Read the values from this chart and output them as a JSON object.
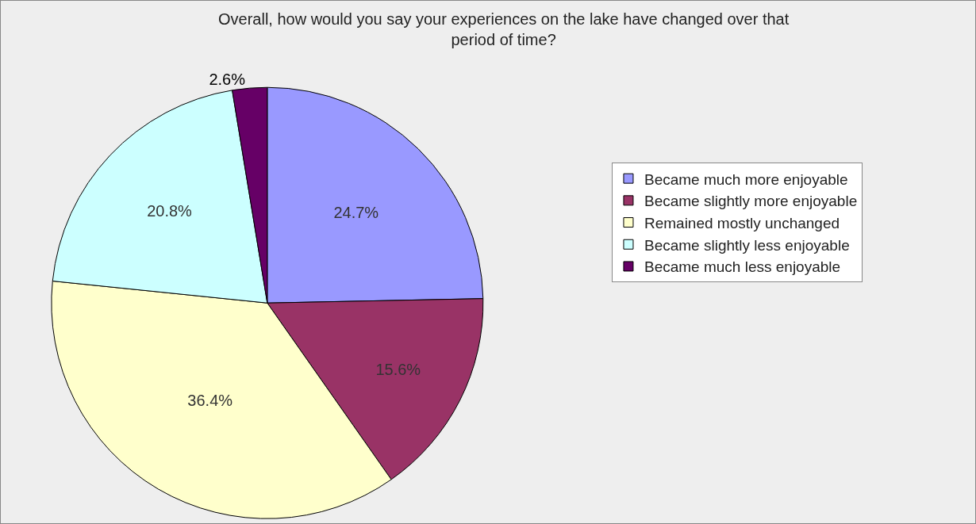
{
  "chart_data": {
    "type": "pie",
    "title": "Overall, how would you say your experiences on the lake have changed over that period of time?",
    "categories": [
      "Became much more enjoyable",
      "Became slightly more enjoyable",
      "Remained mostly unchanged",
      "Became slightly less enjoyable",
      "Became much less enjoyable"
    ],
    "values": [
      24.7,
      15.6,
      36.4,
      20.8,
      2.6
    ],
    "value_labels": [
      "24.7%",
      "15.6%",
      "36.4%",
      "20.8%",
      "2.6%"
    ],
    "colors": [
      "#9999ff",
      "#993366",
      "#ffffcc",
      "#ccffff",
      "#660066"
    ],
    "legend": "right"
  }
}
